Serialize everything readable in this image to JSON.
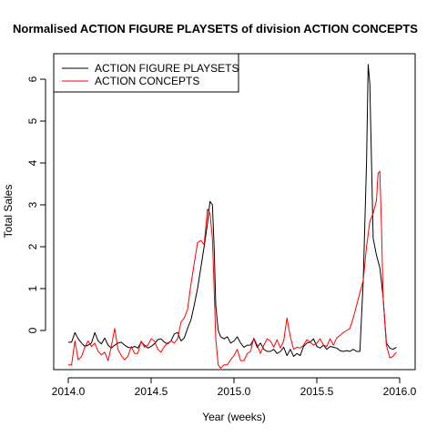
{
  "chart_data": {
    "type": "line",
    "title": "Normalised ACTION FIGURE PLAYSETS of division ACTION CONCEPTS",
    "xlabel": "Year (weeks)",
    "ylabel": "Total Sales",
    "xlim": [
      2014.0,
      2016.0
    ],
    "ylim": [
      -0.9,
      6.3
    ],
    "x_ticks": [
      2014.0,
      2014.5,
      2015.0,
      2015.5,
      2016.0
    ],
    "x_tick_labels": [
      "2014.0",
      "2014.5",
      "2015.0",
      "2015.5",
      "2016.0"
    ],
    "y_ticks": [
      0,
      1,
      2,
      3,
      4,
      5,
      6
    ],
    "y_tick_labels": [
      "0",
      "1",
      "2",
      "3",
      "4",
      "5",
      "6"
    ],
    "grid": false,
    "legend_position": "top-left",
    "series": [
      {
        "name": "ACTION FIGURE PLAYSETS",
        "color": "#000000",
        "points": [
          [
            2014.0,
            -0.28
          ],
          [
            2014.02,
            -0.28
          ],
          [
            2014.04,
            -0.05
          ],
          [
            2014.06,
            -0.2
          ],
          [
            2014.08,
            -0.3
          ],
          [
            2014.1,
            -0.38
          ],
          [
            2014.12,
            -0.35
          ],
          [
            2014.14,
            -0.3
          ],
          [
            2014.16,
            -0.05
          ],
          [
            2014.18,
            -0.25
          ],
          [
            2014.2,
            -0.32
          ],
          [
            2014.22,
            -0.18
          ],
          [
            2014.24,
            -0.35
          ],
          [
            2014.26,
            -0.42
          ],
          [
            2014.28,
            -0.35
          ],
          [
            2014.3,
            -0.3
          ],
          [
            2014.32,
            -0.28
          ],
          [
            2014.34,
            -0.35
          ],
          [
            2014.36,
            -0.4
          ],
          [
            2014.38,
            -0.42
          ],
          [
            2014.4,
            -0.38
          ],
          [
            2014.42,
            -0.42
          ],
          [
            2014.44,
            -0.28
          ],
          [
            2014.46,
            -0.35
          ],
          [
            2014.48,
            -0.42
          ],
          [
            2014.5,
            -0.38
          ],
          [
            2014.52,
            -0.32
          ],
          [
            2014.54,
            -0.22
          ],
          [
            2014.56,
            -0.2
          ],
          [
            2014.58,
            -0.28
          ],
          [
            2014.6,
            -0.32
          ],
          [
            2014.62,
            -0.25
          ],
          [
            2014.64,
            -0.08
          ],
          [
            2014.66,
            -0.05
          ],
          [
            2014.68,
            -0.25
          ],
          [
            2014.7,
            -0.18
          ],
          [
            2014.72,
            0.05
          ],
          [
            2014.74,
            0.25
          ],
          [
            2014.76,
            0.6
          ],
          [
            2014.78,
            1.0
          ],
          [
            2014.8,
            1.5
          ],
          [
            2014.82,
            2.0
          ],
          [
            2014.84,
            2.55
          ],
          [
            2014.855,
            3.08
          ],
          [
            2014.87,
            3.0
          ],
          [
            2014.88,
            2.0
          ],
          [
            2014.89,
            0.6
          ],
          [
            2014.905,
            0.0
          ],
          [
            2014.92,
            -0.15
          ],
          [
            2014.94,
            -0.2
          ],
          [
            2014.96,
            -0.15
          ],
          [
            2014.98,
            -0.3
          ],
          [
            2015.0,
            -0.25
          ],
          [
            2015.02,
            -0.15
          ],
          [
            2015.04,
            -0.3
          ],
          [
            2015.06,
            -0.4
          ],
          [
            2015.08,
            -0.35
          ],
          [
            2015.1,
            -0.35
          ],
          [
            2015.12,
            -0.2
          ],
          [
            2015.14,
            -0.4
          ],
          [
            2015.16,
            -0.3
          ],
          [
            2015.18,
            -0.45
          ],
          [
            2015.2,
            -0.5
          ],
          [
            2015.22,
            -0.5
          ],
          [
            2015.24,
            -0.45
          ],
          [
            2015.26,
            -0.55
          ],
          [
            2015.28,
            -0.5
          ],
          [
            2015.3,
            -0.4
          ],
          [
            2015.32,
            -0.6
          ],
          [
            2015.34,
            -0.45
          ],
          [
            2015.36,
            -0.62
          ],
          [
            2015.38,
            -0.55
          ],
          [
            2015.4,
            -0.6
          ],
          [
            2015.42,
            -0.38
          ],
          [
            2015.44,
            -0.3
          ],
          [
            2015.46,
            -0.28
          ],
          [
            2015.48,
            -0.2
          ],
          [
            2015.5,
            -0.38
          ],
          [
            2015.52,
            -0.42
          ],
          [
            2015.54,
            -0.35
          ],
          [
            2015.56,
            -0.45
          ],
          [
            2015.58,
            -0.38
          ],
          [
            2015.6,
            -0.4
          ],
          [
            2015.62,
            -0.42
          ],
          [
            2015.64,
            -0.48
          ],
          [
            2015.66,
            -0.5
          ],
          [
            2015.68,
            -0.48
          ],
          [
            2015.7,
            -0.5
          ],
          [
            2015.72,
            -0.45
          ],
          [
            2015.74,
            -0.5
          ],
          [
            2015.76,
            -0.5
          ],
          [
            2015.78,
            1.2
          ],
          [
            2015.8,
            4.0
          ],
          [
            2015.81,
            6.35
          ],
          [
            2015.82,
            5.9
          ],
          [
            2015.83,
            4.0
          ],
          [
            2015.84,
            2.2
          ],
          [
            2015.86,
            1.8
          ],
          [
            2015.88,
            1.5
          ],
          [
            2015.9,
            0.8
          ],
          [
            2015.92,
            -0.3
          ],
          [
            2015.94,
            -0.42
          ],
          [
            2015.96,
            -0.45
          ],
          [
            2015.98,
            -0.4
          ]
        ]
      },
      {
        "name": "ACTION CONCEPTS",
        "color": "#ff0000",
        "points": [
          [
            2014.0,
            -0.82
          ],
          [
            2014.02,
            -0.82
          ],
          [
            2014.04,
            -0.25
          ],
          [
            2014.06,
            -0.7
          ],
          [
            2014.08,
            -0.62
          ],
          [
            2014.1,
            -0.4
          ],
          [
            2014.12,
            -0.25
          ],
          [
            2014.14,
            -0.38
          ],
          [
            2014.16,
            -0.3
          ],
          [
            2014.18,
            -0.5
          ],
          [
            2014.2,
            -0.58
          ],
          [
            2014.22,
            -0.52
          ],
          [
            2014.24,
            -0.72
          ],
          [
            2014.26,
            -0.38
          ],
          [
            2014.28,
            0.05
          ],
          [
            2014.3,
            -0.45
          ],
          [
            2014.32,
            -0.6
          ],
          [
            2014.34,
            -0.7
          ],
          [
            2014.36,
            -0.62
          ],
          [
            2014.38,
            -0.38
          ],
          [
            2014.4,
            -0.55
          ],
          [
            2014.42,
            -0.55
          ],
          [
            2014.44,
            -0.25
          ],
          [
            2014.46,
            -0.4
          ],
          [
            2014.48,
            -0.35
          ],
          [
            2014.5,
            -0.2
          ],
          [
            2014.52,
            -0.25
          ],
          [
            2014.54,
            -0.45
          ],
          [
            2014.56,
            -0.52
          ],
          [
            2014.58,
            -0.38
          ],
          [
            2014.6,
            -0.3
          ],
          [
            2014.62,
            -0.25
          ],
          [
            2014.64,
            -0.3
          ],
          [
            2014.66,
            -0.2
          ],
          [
            2014.68,
            0.2
          ],
          [
            2014.7,
            0.3
          ],
          [
            2014.72,
            0.5
          ],
          [
            2014.74,
            1.1
          ],
          [
            2014.76,
            1.6
          ],
          [
            2014.78,
            2.1
          ],
          [
            2014.8,
            2.15
          ],
          [
            2014.82,
            2.05
          ],
          [
            2014.84,
            2.9
          ],
          [
            2014.855,
            2.8
          ],
          [
            2014.87,
            2.2
          ],
          [
            2014.88,
            1.0
          ],
          [
            2014.89,
            -0.2
          ],
          [
            2014.905,
            -0.82
          ],
          [
            2014.92,
            -0.9
          ],
          [
            2014.94,
            -0.82
          ],
          [
            2014.96,
            -0.82
          ],
          [
            2014.98,
            -0.7
          ],
          [
            2015.0,
            -0.6
          ],
          [
            2015.02,
            -0.45
          ],
          [
            2015.04,
            -0.72
          ],
          [
            2015.06,
            -0.72
          ],
          [
            2015.08,
            -0.55
          ],
          [
            2015.1,
            -0.5
          ],
          [
            2015.12,
            -0.18
          ],
          [
            2015.14,
            -0.35
          ],
          [
            2015.16,
            -0.55
          ],
          [
            2015.18,
            -0.35
          ],
          [
            2015.2,
            -0.2
          ],
          [
            2015.22,
            -0.25
          ],
          [
            2015.24,
            -0.4
          ],
          [
            2015.26,
            -0.22
          ],
          [
            2015.28,
            -0.42
          ],
          [
            2015.3,
            -0.25
          ],
          [
            2015.32,
            0.3
          ],
          [
            2015.34,
            -0.15
          ],
          [
            2015.36,
            -0.45
          ],
          [
            2015.38,
            -0.4
          ],
          [
            2015.4,
            -0.42
          ],
          [
            2015.42,
            -0.35
          ],
          [
            2015.44,
            -0.22
          ],
          [
            2015.46,
            -0.28
          ],
          [
            2015.48,
            -0.35
          ],
          [
            2015.5,
            -0.3
          ],
          [
            2015.52,
            -0.2
          ],
          [
            2015.54,
            -0.35
          ],
          [
            2015.56,
            -0.38
          ],
          [
            2015.58,
            -0.2
          ],
          [
            2015.6,
            -0.35
          ],
          [
            2015.62,
            -0.18
          ],
          [
            2015.64,
            -0.12
          ],
          [
            2015.66,
            -0.05
          ],
          [
            2015.68,
            0.0
          ],
          [
            2015.7,
            0.05
          ],
          [
            2015.72,
            0.3
          ],
          [
            2015.74,
            0.6
          ],
          [
            2015.76,
            0.9
          ],
          [
            2015.78,
            1.2
          ],
          [
            2015.8,
            2.0
          ],
          [
            2015.82,
            2.6
          ],
          [
            2015.84,
            2.8
          ],
          [
            2015.86,
            3.1
          ],
          [
            2015.87,
            3.75
          ],
          [
            2015.88,
            3.8
          ],
          [
            2015.89,
            2.5
          ],
          [
            2015.9,
            0.8
          ],
          [
            2015.92,
            -0.35
          ],
          [
            2015.94,
            -0.65
          ],
          [
            2015.96,
            -0.62
          ],
          [
            2015.98,
            -0.52
          ]
        ]
      }
    ]
  }
}
